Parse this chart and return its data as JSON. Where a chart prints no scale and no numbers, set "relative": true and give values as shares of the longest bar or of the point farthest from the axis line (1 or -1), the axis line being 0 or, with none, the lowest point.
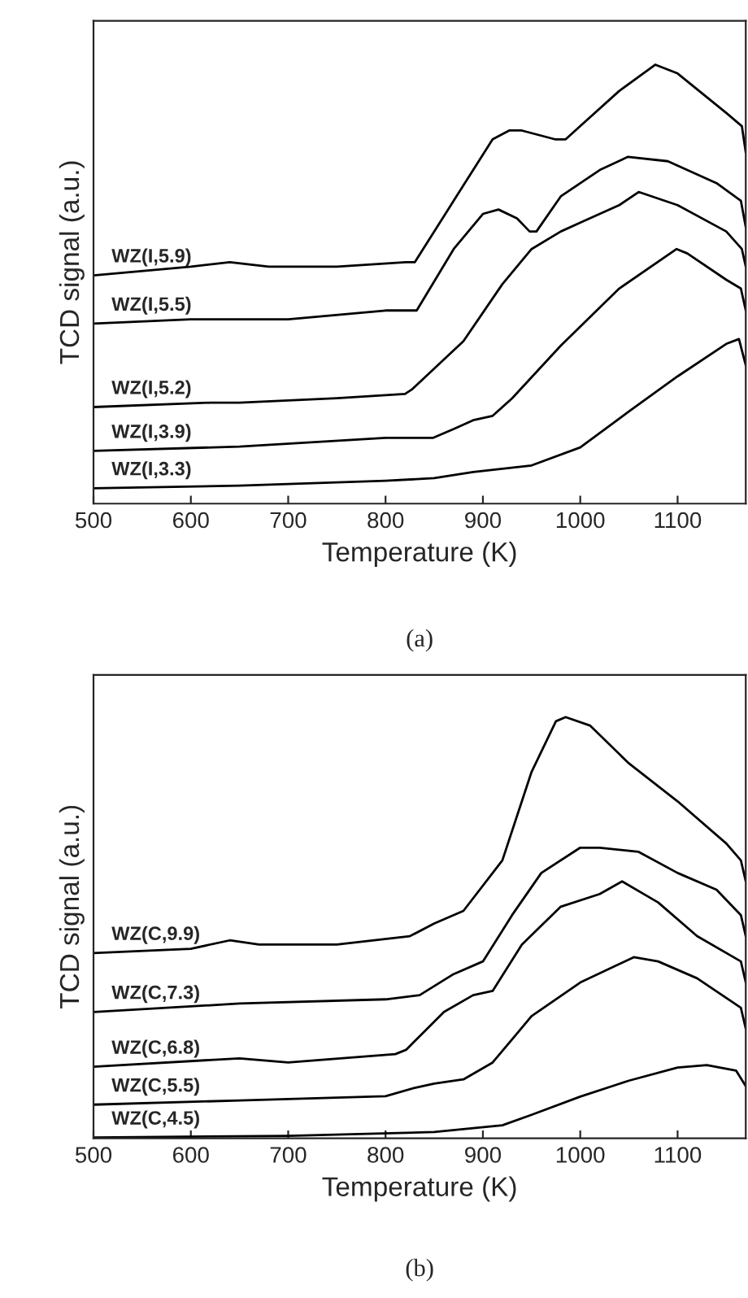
{
  "chart_data": [
    {
      "type": "line",
      "relative": true,
      "xlabel": "Temperature (K)",
      "ylabel": "TCD signal (a.u.)",
      "xlim": [
        500,
        1170
      ],
      "xticks": [
        500,
        600,
        700,
        800,
        900,
        1000,
        1100
      ],
      "tick_labels": "x",
      "grid": false,
      "legend": false,
      "marker": "none",
      "line_style": "solid",
      "annotations": [
        "(a)"
      ],
      "series": [
        {
          "name": "WZ(I,5.9)",
          "color": "#000000",
          "x": [
            500,
            600,
            640,
            680,
            750,
            821,
            830,
            870,
            910,
            927,
            940,
            974,
            985,
            1000,
            1040,
            1077,
            1100,
            1150,
            1166,
            1170
          ],
          "values": [
            0.52,
            0.54,
            0.55,
            0.54,
            0.54,
            0.55,
            0.55,
            0.69,
            0.83,
            0.85,
            0.85,
            0.83,
            0.83,
            0.86,
            0.94,
            1.0,
            0.98,
            0.89,
            0.86,
            0.8
          ]
        },
        {
          "name": "WZ(I,5.5)",
          "color": "#000000",
          "x": [
            500,
            600,
            640,
            700,
            800,
            832,
            870,
            900,
            916,
            935,
            948,
            955,
            980,
            1020,
            1049,
            1090,
            1140,
            1165,
            1170
          ],
          "values": [
            0.41,
            0.42,
            0.42,
            0.42,
            0.44,
            0.44,
            0.58,
            0.66,
            0.67,
            0.65,
            0.62,
            0.62,
            0.7,
            0.76,
            0.79,
            0.78,
            0.73,
            0.69,
            0.63
          ]
        },
        {
          "name": "WZ(I,5.2)",
          "color": "#000000",
          "x": [
            500,
            620,
            650,
            750,
            820,
            827,
            880,
            920,
            950,
            980,
            1000,
            1040,
            1060,
            1100,
            1150,
            1166,
            1170
          ],
          "values": [
            0.22,
            0.23,
            0.23,
            0.24,
            0.25,
            0.26,
            0.37,
            0.5,
            0.58,
            0.62,
            0.64,
            0.68,
            0.71,
            0.68,
            0.62,
            0.58,
            0.54
          ]
        },
        {
          "name": "WZ(I,3.9)",
          "color": "#000000",
          "x": [
            500,
            650,
            800,
            849,
            870,
            890,
            910,
            930,
            980,
            1040,
            1099,
            1110,
            1150,
            1165,
            1170
          ],
          "values": [
            0.12,
            0.13,
            0.15,
            0.15,
            0.17,
            0.19,
            0.2,
            0.24,
            0.36,
            0.49,
            0.58,
            0.57,
            0.51,
            0.49,
            0.44
          ]
        },
        {
          "name": "WZ(I,3.3)",
          "color": "#000000",
          "x": [
            500,
            650,
            800,
            850,
            890,
            950,
            1000,
            1050,
            1100,
            1150,
            1163,
            1170
          ],
          "values": [
            0.035,
            0.041,
            0.052,
            0.058,
            0.072,
            0.087,
            0.128,
            0.21,
            0.29,
            0.364,
            0.375,
            0.315
          ]
        }
      ]
    },
    {
      "type": "line",
      "relative": true,
      "xlabel": "Temperature (K)",
      "ylabel": "TCD signal (a.u.)",
      "xlim": [
        500,
        1170
      ],
      "xticks": [
        500,
        600,
        700,
        800,
        900,
        1000,
        1100
      ],
      "tick_labels": "x",
      "grid": false,
      "legend": false,
      "marker": "none",
      "line_style": "solid",
      "annotations": [
        "(b)"
      ],
      "series": [
        {
          "name": "WZ(C,9.9)",
          "color": "#000000",
          "x": [
            500,
            600,
            640,
            670,
            750,
            825,
            850,
            880,
            920,
            950,
            975,
            985,
            1010,
            1050,
            1100,
            1150,
            1165,
            1170
          ],
          "values": [
            0.44,
            0.45,
            0.47,
            0.46,
            0.46,
            0.48,
            0.51,
            0.54,
            0.66,
            0.87,
            0.99,
            1.0,
            0.98,
            0.89,
            0.8,
            0.7,
            0.66,
            0.61
          ]
        },
        {
          "name": "WZ(C,7.3)",
          "color": "#000000",
          "x": [
            500,
            650,
            800,
            835,
            870,
            900,
            930,
            960,
            1000,
            1020,
            1060,
            1100,
            1140,
            1165,
            1170
          ],
          "values": [
            0.3,
            0.32,
            0.33,
            0.34,
            0.39,
            0.42,
            0.53,
            0.63,
            0.69,
            0.69,
            0.68,
            0.63,
            0.59,
            0.53,
            0.48
          ]
        },
        {
          "name": "WZ(C,6.8)",
          "color": "#000000",
          "x": [
            500,
            650,
            700,
            810,
            821,
            860,
            890,
            910,
            940,
            980,
            1020,
            1043,
            1080,
            1120,
            1165,
            1170
          ],
          "values": [
            0.17,
            0.19,
            0.18,
            0.2,
            0.21,
            0.3,
            0.34,
            0.35,
            0.46,
            0.55,
            0.58,
            0.61,
            0.56,
            0.48,
            0.42,
            0.37
          ]
        },
        {
          "name": "WZ(C,5.5)",
          "color": "#000000",
          "x": [
            500,
            650,
            800,
            830,
            850,
            880,
            910,
            950,
            1000,
            1055,
            1080,
            1120,
            1165,
            1170
          ],
          "values": [
            0.08,
            0.09,
            0.1,
            0.12,
            0.13,
            0.14,
            0.18,
            0.29,
            0.37,
            0.43,
            0.42,
            0.38,
            0.31,
            0.26
          ]
        },
        {
          "name": "WZ(C,4.5)",
          "color": "#000000",
          "x": [
            500,
            700,
            850,
            920,
            950,
            1000,
            1050,
            1100,
            1130,
            1160,
            1170
          ],
          "values": [
            0.002,
            0.006,
            0.015,
            0.031,
            0.056,
            0.099,
            0.137,
            0.168,
            0.174,
            0.161,
            0.124
          ]
        }
      ]
    }
  ]
}
